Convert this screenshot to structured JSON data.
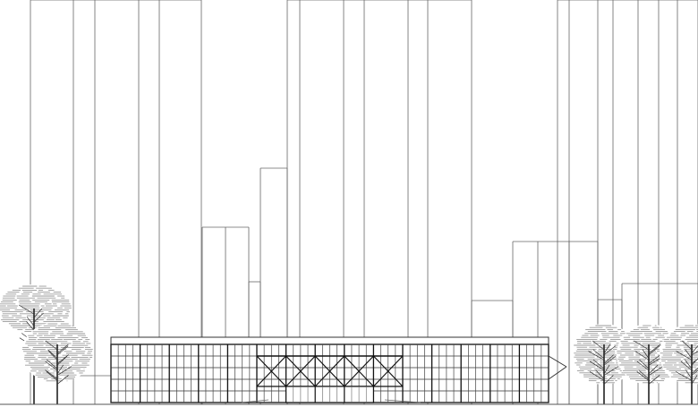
{
  "drawing": {
    "kind": "architectural-elevation",
    "line_color": "#555555",
    "heavy_line_color": "#222222",
    "foliage_color": "#999999",
    "elements": [
      "background-towers",
      "glass-pavilion",
      "roof-truss",
      "entrance-doors",
      "trees"
    ]
  }
}
